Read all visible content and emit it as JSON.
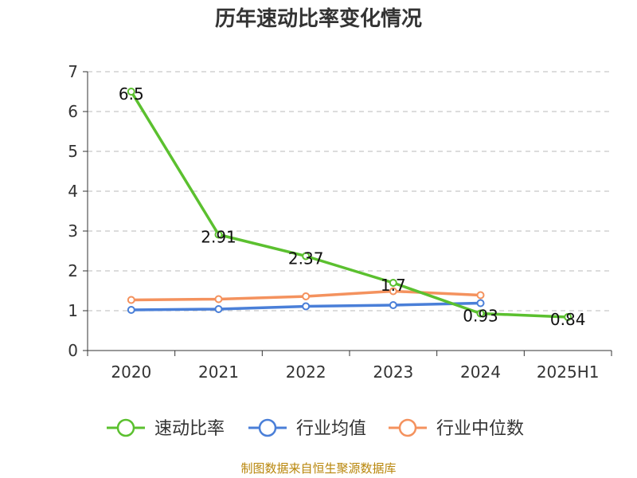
{
  "chart_data": {
    "type": "line",
    "title": "历年速动比率变化情况",
    "categories": [
      "2020",
      "2021",
      "2022",
      "2023",
      "2024",
      "2025H1"
    ],
    "ylim": [
      0,
      7
    ],
    "yticks": [
      "0",
      "1",
      "2",
      "3",
      "4",
      "5",
      "6",
      "7"
    ],
    "grid": true,
    "legend_position": "bottom",
    "series": [
      {
        "name": "速动比率",
        "color": "#5bc02f",
        "values": [
          6.5,
          2.91,
          2.37,
          1.7,
          0.93,
          0.84
        ],
        "labels": [
          "6.5",
          "2.91",
          "2.37",
          "1.7",
          "0.93",
          "0.84"
        ]
      },
      {
        "name": "行业均值",
        "color": "#4a7fd8",
        "values": [
          1.02,
          1.04,
          1.11,
          1.14,
          1.19,
          null
        ]
      },
      {
        "name": "行业中位数",
        "color": "#f4925e",
        "values": [
          1.27,
          1.29,
          1.36,
          1.49,
          1.39,
          null
        ]
      }
    ]
  },
  "source": "制图数据来自恒生聚源数据库"
}
